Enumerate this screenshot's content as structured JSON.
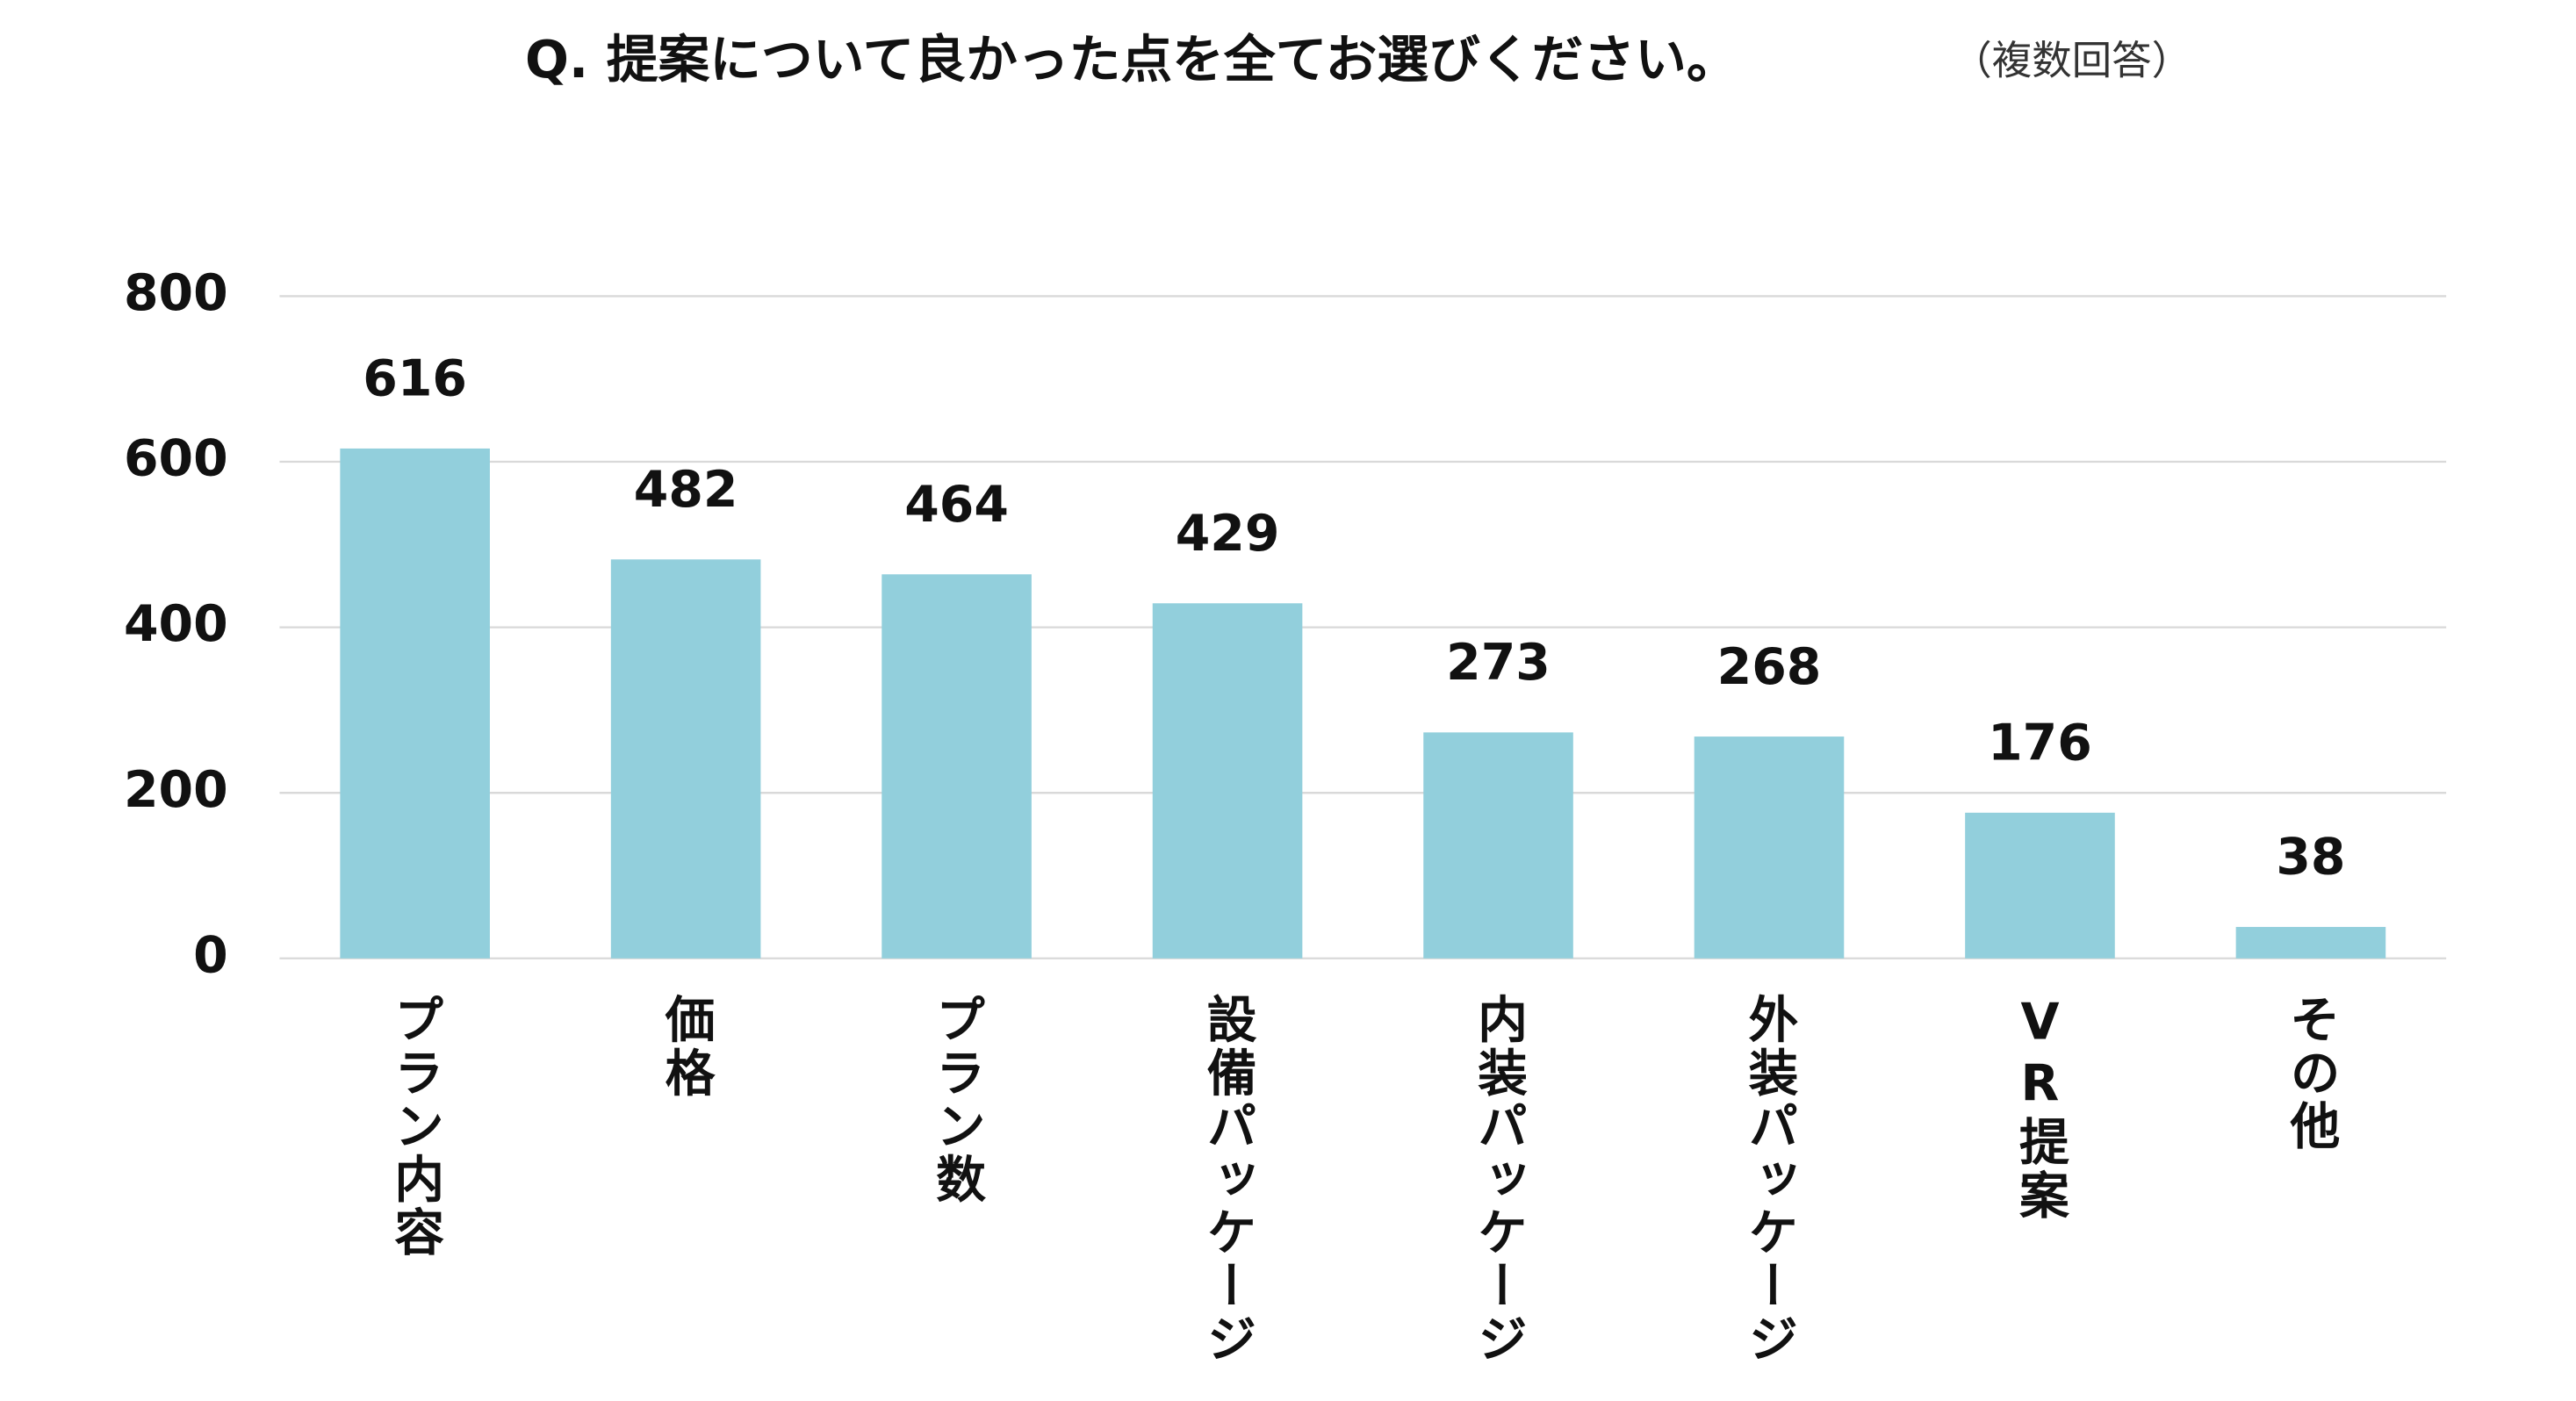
{
  "chart_data": {
    "type": "bar",
    "title": "Q. 提案について良かった点を全てお選びください。",
    "subtitle": "（複数回答）",
    "categories": [
      "プラン内容",
      "価格",
      "プラン数",
      "設備パッケージ",
      "内装パッケージ",
      "外装パッケージ",
      "VR提案",
      "その他"
    ],
    "values": [
      616,
      482,
      464,
      429,
      273,
      268,
      176,
      38
    ],
    "color": "#92cfdc",
    "ylim": [
      0,
      800
    ],
    "yticks": [
      0,
      200,
      400,
      600,
      800
    ],
    "grid": true
  }
}
